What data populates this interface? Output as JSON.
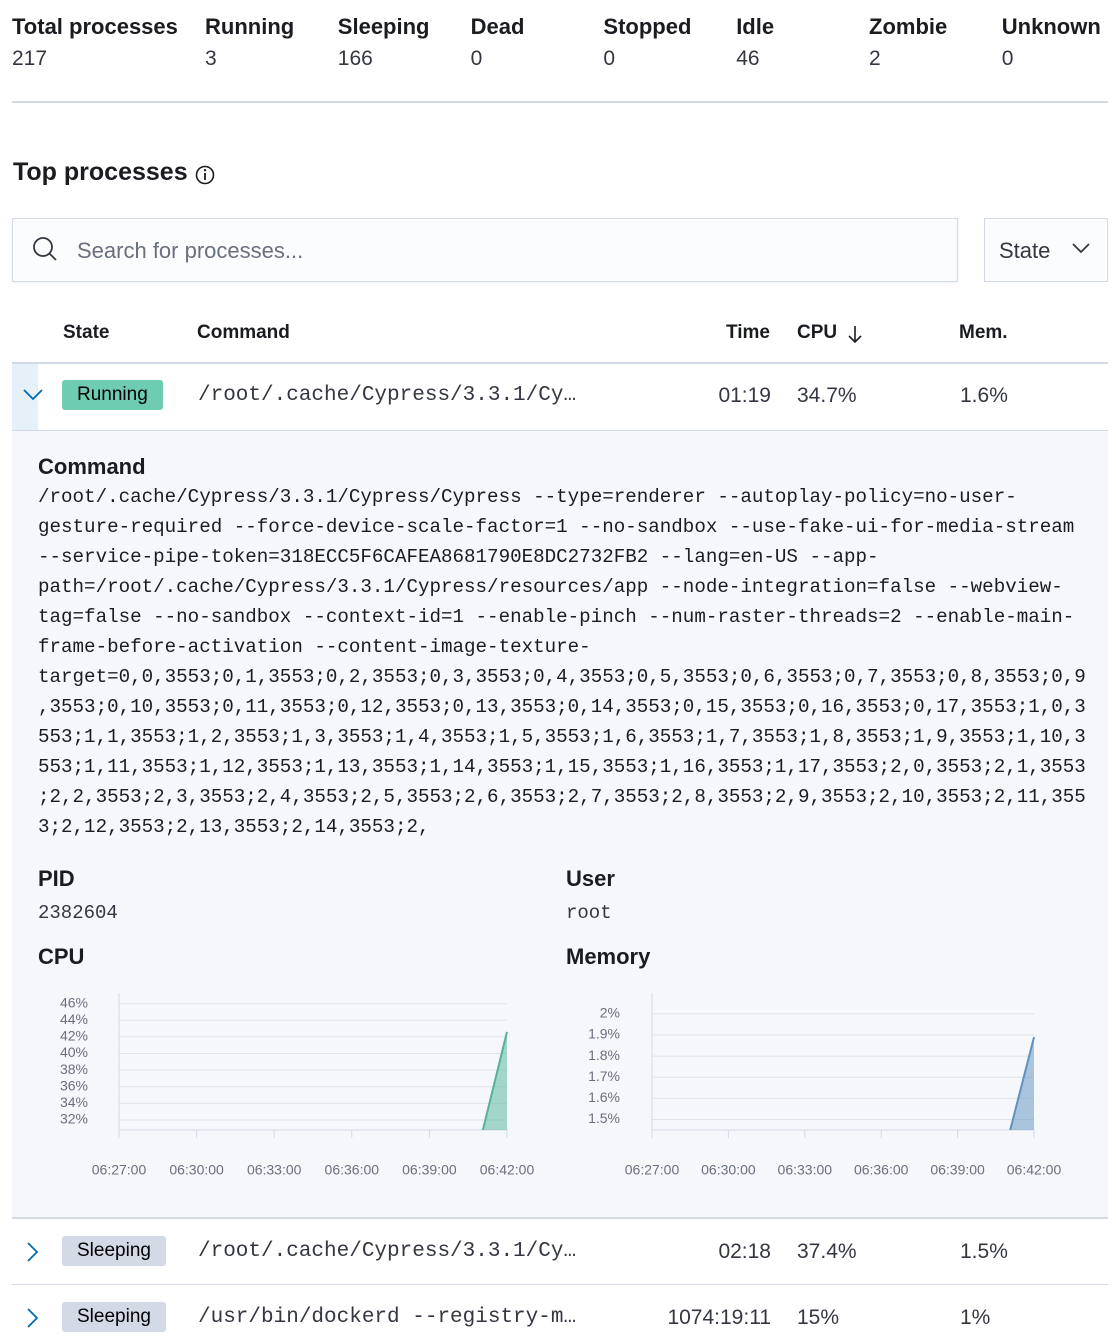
{
  "summary": [
    {
      "label": "Total processes",
      "value": 217
    },
    {
      "label": "Running",
      "value": 3
    },
    {
      "label": "Sleeping",
      "value": 166
    },
    {
      "label": "Dead",
      "value": 0
    },
    {
      "label": "Stopped",
      "value": 0
    },
    {
      "label": "Idle",
      "value": 46
    },
    {
      "label": "Zombie",
      "value": 2
    },
    {
      "label": "Unknown",
      "value": 0
    }
  ],
  "section_title": "Top processes",
  "search_placeholder": "Search for processes...",
  "state_filter": "State",
  "table": {
    "headers": [
      "State",
      "Command",
      "Time",
      "CPU",
      "Mem."
    ],
    "rows": [
      [
        "Running",
        "/root/.cache/Cypress/3.3.1/Cy…",
        "01:19",
        "34.7%",
        "1.6%"
      ],
      [
        "Sleeping",
        "/root/.cache/Cypress/3.3.1/Cy…",
        "02:18",
        "37.4%",
        "1.5%"
      ],
      [
        "Sleeping",
        "/usr/bin/dockerd --registry-m…",
        "1074:19:11",
        "15%",
        "1%"
      ]
    ]
  },
  "details": {
    "command_label": "Command",
    "command": "/root/.cache/Cypress/3.3.1/Cypress/Cypress --type=renderer --autoplay-policy=no-user-gesture-required --force-device-scale-factor=1 --no-sandbox --use-fake-ui-for-media-stream --service-pipe-token=318ECC5F6CAFEA8681790E8DC2732FB2 --lang=en-US --app-path=/root/.cache/Cypress/3.3.1/Cypress/resources/app --node-integration=false --webview-tag=false --no-sandbox --context-id=1 --enable-pinch --num-raster-threads=2 --enable-main-frame-before-activation --content-image-texture-target=0,0,3553;0,1,3553;0,2,3553;0,3,3553;0,4,3553;0,5,3553;0,6,3553;0,7,3553;0,8,3553;0,9,3553;0,10,3553;0,11,3553;0,12,3553;0,13,3553;0,14,3553;0,15,3553;0,16,3553;0,17,3553;1,0,3553;1,1,3553;1,2,3553;1,3,3553;1,4,3553;1,5,3553;1,6,3553;1,7,3553;1,8,3553;1,9,3553;1,10,3553;1,11,3553;1,12,3553;1,13,3553;1,14,3553;1,15,3553;1,16,3553;1,17,3553;2,0,3553;2,1,3553;2,2,3553;2,3,3553;2,4,3553;2,5,3553;2,6,3553;2,7,3553;2,8,3553;2,9,3553;2,10,3553;2,11,3553;2,12,3553;2,13,3553;2,14,3553;2,",
    "pid_label": "PID",
    "pid": "2382604",
    "user_label": "User",
    "user": "root"
  },
  "chart_data": [
    {
      "type": "area",
      "title": "CPU",
      "color": "#54b399",
      "x": [
        "06:41:04",
        "06:42:00"
      ],
      "values": [
        30.8,
        42.6
      ],
      "xlim": [
        "06:27:00",
        "06:42:00"
      ],
      "xticks": [
        "06:27:00",
        "06:30:00",
        "06:33:00",
        "06:36:00",
        "06:39:00",
        "06:42:00"
      ],
      "ylim": [
        30.8,
        46.8
      ],
      "yticks": [
        {
          "value": 32,
          "label": "32%"
        },
        {
          "value": 34,
          "label": "34%"
        },
        {
          "value": 36,
          "label": "36%"
        },
        {
          "value": 38,
          "label": "38%"
        },
        {
          "value": 40,
          "label": "40%"
        },
        {
          "value": 42,
          "label": "42%"
        },
        {
          "value": 44,
          "label": "44%"
        },
        {
          "value": 46,
          "label": "46%"
        }
      ],
      "grid": true
    },
    {
      "type": "area",
      "title": "Memory",
      "color": "#6092c0",
      "x": [
        "06:41:04",
        "06:42:00"
      ],
      "values": [
        1.45,
        1.89
      ],
      "xlim": [
        "06:27:00",
        "06:42:00"
      ],
      "xticks": [
        "06:27:00",
        "06:30:00",
        "06:33:00",
        "06:36:00",
        "06:39:00",
        "06:42:00"
      ],
      "ylim": [
        1.45,
        2.08
      ],
      "yticks": [
        {
          "value": 1.5,
          "label": "1.5%"
        },
        {
          "value": 1.6,
          "label": "1.6%"
        },
        {
          "value": 1.7,
          "label": "1.7%"
        },
        {
          "value": 1.8,
          "label": "1.8%"
        },
        {
          "value": 1.9,
          "label": "1.9%"
        },
        {
          "value": 2,
          "label": "2%"
        }
      ],
      "grid": true
    }
  ]
}
